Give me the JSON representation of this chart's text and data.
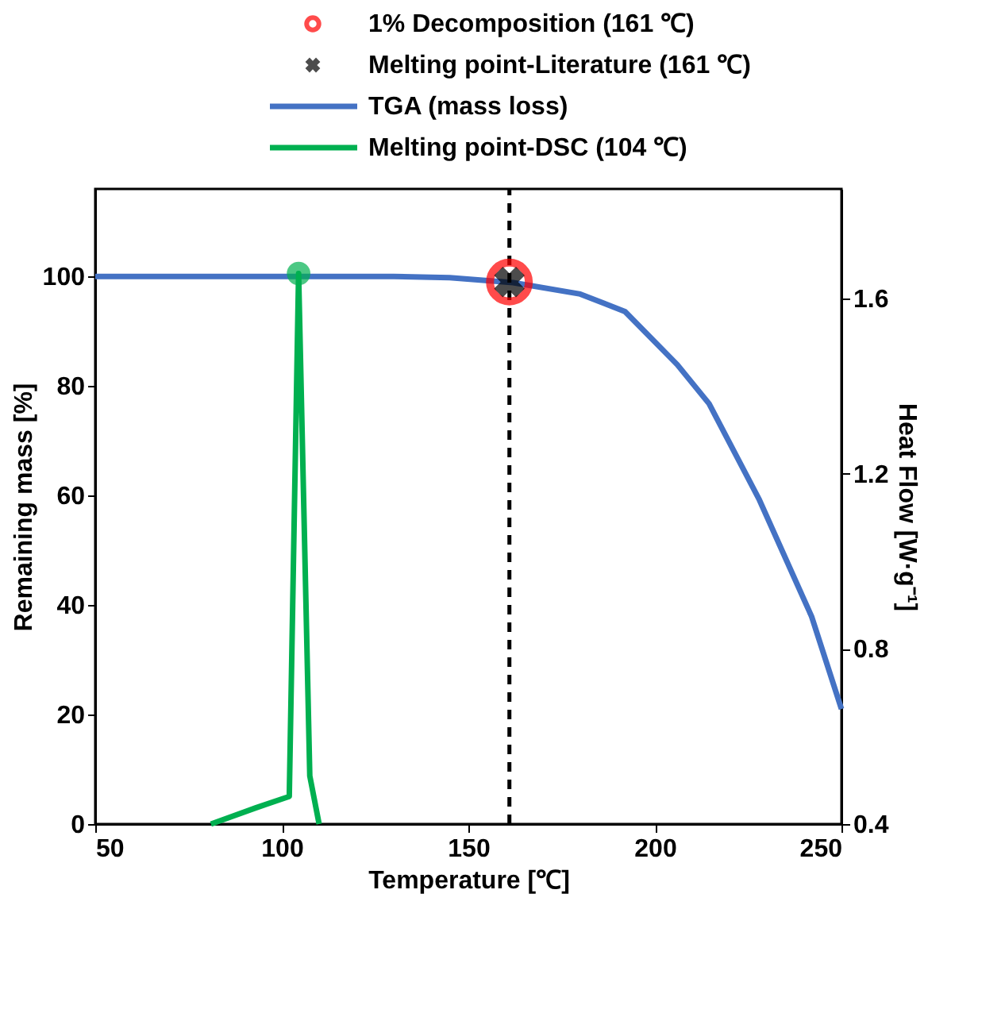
{
  "chart_data": {
    "type": "line",
    "xlabel": "Temperature [℃]",
    "ylabel": "Remaining mass  [%]",
    "y2label": "Heat Flow [W·g⁻¹]",
    "xlim": [
      50,
      250
    ],
    "xticks": [
      50,
      100,
      150,
      200,
      250
    ],
    "ylim": [
      0,
      116
    ],
    "yticks": [
      0,
      20,
      40,
      60,
      80,
      100
    ],
    "y2lim": [
      0.4,
      1.85
    ],
    "y2ticks": [
      0.4,
      0.8,
      1.2,
      1.6
    ],
    "legend": "top",
    "grid": false,
    "ref_lines": [
      {
        "axis": "x",
        "value": 161,
        "color": "#000000",
        "line_style": "dashed"
      }
    ],
    "series": [
      {
        "name": "1% Decomposition (161 ℃)",
        "type": "scatter",
        "marker": "circle",
        "color": "#ff0000",
        "x": [
          161
        ],
        "values": [
          99
        ]
      },
      {
        "name": "Melting point-Literature (161 ℃)",
        "type": "scatter",
        "marker": "cross",
        "color": "#000000",
        "x": [
          161
        ],
        "values": [
          99
        ]
      },
      {
        "name": "TGA (mass loss)",
        "color": "#4472c4",
        "x": [
          50,
          100,
          130,
          145,
          162,
          180,
          192,
          206,
          214.5,
          228,
          242,
          250
        ],
        "values": [
          100,
          100,
          100,
          99.8,
          98.9,
          96.8,
          93.6,
          83.9,
          76.8,
          59.2,
          37.9,
          21
        ]
      },
      {
        "name": "Melting point-DSC (104 ℃)",
        "axis": "y2",
        "color": "#00b050",
        "x": [
          81,
          93,
          102,
          104.5,
          107.5,
          110
        ],
        "values": [
          0.4,
          0.437,
          0.463,
          1.657,
          0.51,
          0.4
        ]
      },
      {
        "type": "scatter",
        "axis": "y2",
        "marker": "circle",
        "color": "#00b050",
        "x": [
          104.5
        ],
        "values": [
          1.657
        ]
      }
    ]
  }
}
